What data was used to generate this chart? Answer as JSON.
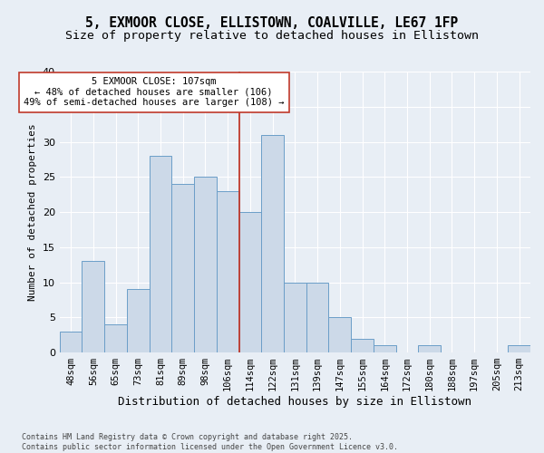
{
  "title": "5, EXMOOR CLOSE, ELLISTOWN, COALVILLE, LE67 1FP",
  "subtitle": "Size of property relative to detached houses in Ellistown",
  "xlabel": "Distribution of detached houses by size in Ellistown",
  "ylabel": "Number of detached properties",
  "footnote": "Contains HM Land Registry data © Crown copyright and database right 2025.\nContains public sector information licensed under the Open Government Licence v3.0.",
  "bar_labels": [
    "48sqm",
    "56sqm",
    "65sqm",
    "73sqm",
    "81sqm",
    "89sqm",
    "98sqm",
    "106sqm",
    "114sqm",
    "122sqm",
    "131sqm",
    "139sqm",
    "147sqm",
    "155sqm",
    "164sqm",
    "172sqm",
    "180sqm",
    "188sqm",
    "197sqm",
    "205sqm",
    "213sqm"
  ],
  "bar_values": [
    3,
    13,
    4,
    9,
    28,
    24,
    25,
    23,
    20,
    31,
    10,
    10,
    5,
    2,
    1,
    0,
    1,
    0,
    0,
    0,
    1
  ],
  "bar_color": "#ccd9e8",
  "bar_edge_color": "#6b9ec8",
  "vline_x": 7.5,
  "vline_color": "#c0392b",
  "annotation_line1": "5 EXMOOR CLOSE: 107sqm",
  "annotation_line2": "← 48% of detached houses are smaller (106)",
  "annotation_line3": "49% of semi-detached houses are larger (108) →",
  "annotation_box_facecolor": "#ffffff",
  "annotation_box_edgecolor": "#c0392b",
  "ylim": [
    0,
    40
  ],
  "yticks": [
    0,
    5,
    10,
    15,
    20,
    25,
    30,
    35,
    40
  ],
  "bg_color": "#e8eef5",
  "grid_color": "#ffffff",
  "title_fontsize": 10.5,
  "subtitle_fontsize": 9.5,
  "ylabel_fontsize": 8,
  "xlabel_fontsize": 9,
  "ytick_fontsize": 8,
  "xtick_fontsize": 7.5,
  "annotation_fontsize": 7.5,
  "footnote_fontsize": 6.0
}
